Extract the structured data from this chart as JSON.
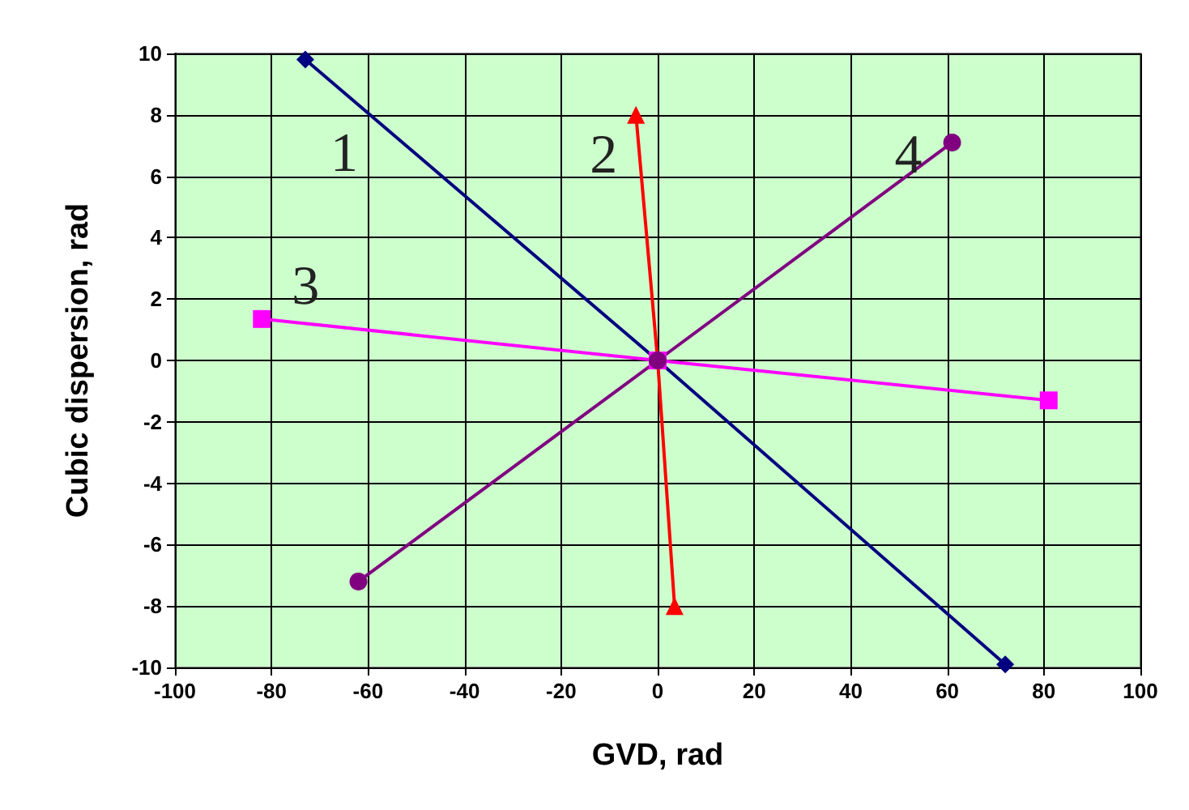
{
  "chart_data": {
    "type": "line",
    "xlabel": "GVD, rad",
    "ylabel": "Cubic dispersion, rad",
    "xlim": [
      -100,
      100
    ],
    "xticks": [
      -100,
      -80,
      -60,
      -40,
      -20,
      0,
      20,
      40,
      60,
      80,
      100
    ],
    "ylim": [
      -10,
      10
    ],
    "yticks": [
      -10,
      -8,
      -6,
      -4,
      -2,
      0,
      2,
      4,
      6,
      8,
      10
    ],
    "grid": true,
    "series": [
      {
        "name": "1",
        "color": "#000080",
        "marker": "diamond",
        "x": [
          -73,
          0,
          72
        ],
        "values": [
          9.8,
          0,
          -9.9
        ]
      },
      {
        "name": "2",
        "color": "#ff0000",
        "marker": "triangle",
        "x": [
          -4.5,
          0,
          3.5
        ],
        "values": [
          8,
          0,
          -8
        ]
      },
      {
        "name": "3",
        "color": "#ff00ff",
        "marker": "square",
        "x": [
          -82,
          0,
          81
        ],
        "values": [
          1.35,
          0,
          -1.3
        ]
      },
      {
        "name": "4",
        "color": "#800080",
        "marker": "circle",
        "x": [
          -62,
          0,
          61
        ],
        "values": [
          -7.2,
          0,
          7.1
        ]
      }
    ]
  }
}
